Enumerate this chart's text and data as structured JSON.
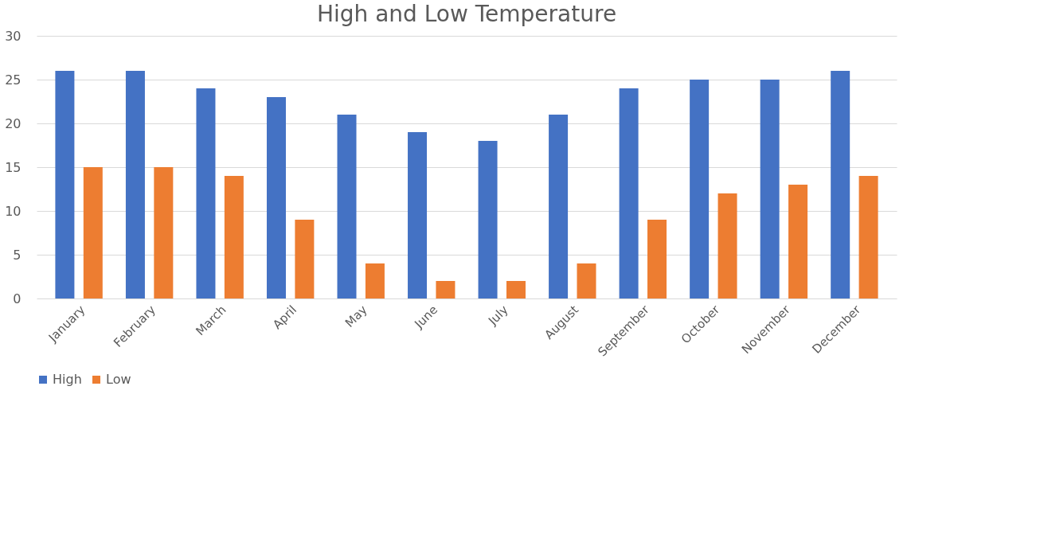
{
  "chart_data": {
    "type": "bar",
    "title": "High and Low Temperature",
    "categories": [
      "January",
      "February",
      "March",
      "April",
      "May",
      "June",
      "July",
      "August",
      "September",
      "October",
      "November",
      "December"
    ],
    "series": [
      {
        "name": "High",
        "color": "#4472c4",
        "values": [
          26,
          26,
          24,
          23,
          21,
          19,
          18,
          21,
          24,
          25,
          25,
          26
        ]
      },
      {
        "name": "Low",
        "color": "#ed7d31",
        "values": [
          15,
          15,
          14,
          9,
          4,
          2,
          2,
          4,
          9,
          12,
          13,
          14
        ]
      }
    ],
    "ylim": [
      0,
      30
    ],
    "yticks": [
      0,
      5,
      10,
      15,
      20,
      25,
      30
    ],
    "grid": "y",
    "legend": "bottom"
  }
}
